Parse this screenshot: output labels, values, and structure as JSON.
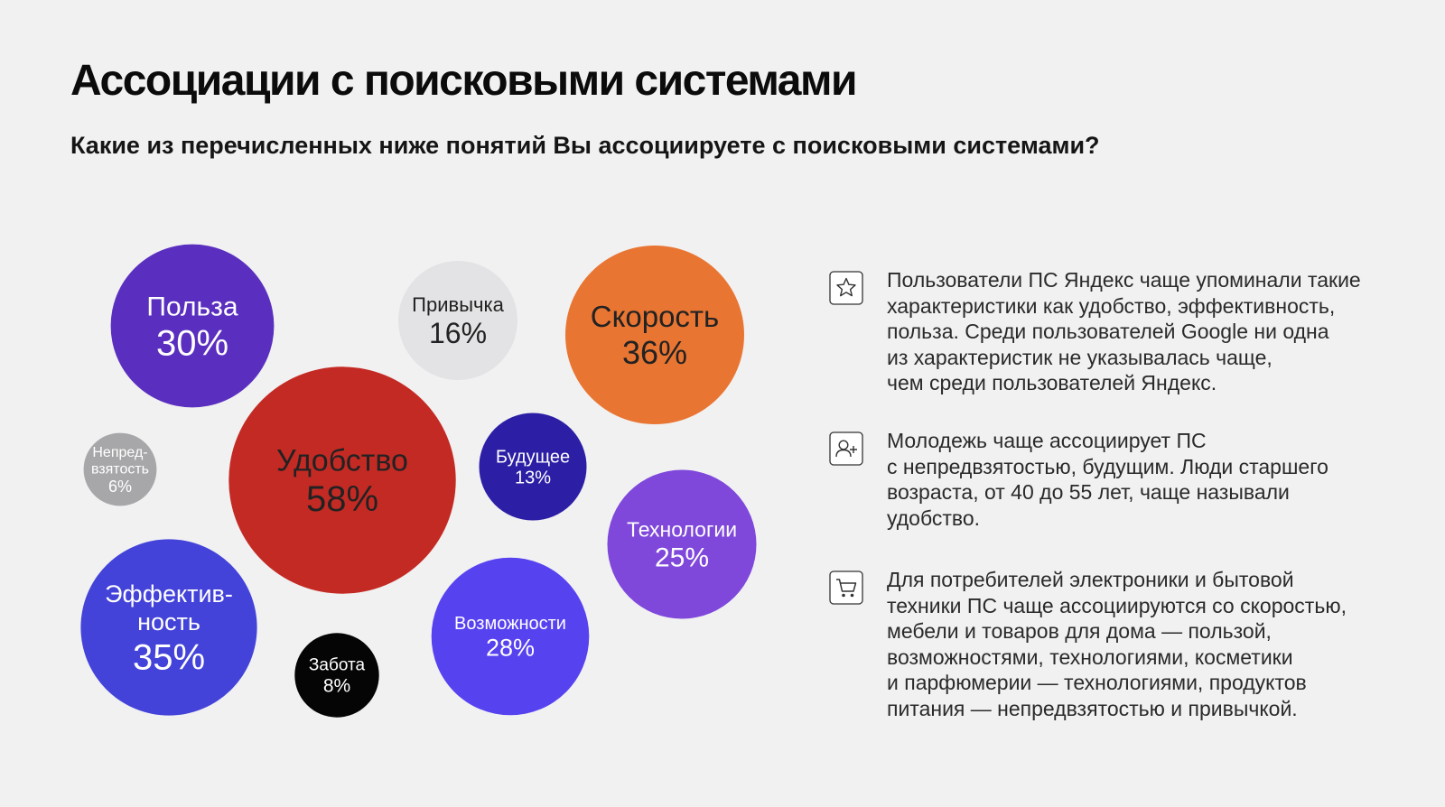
{
  "header": {
    "title": "Ассоциации с поисковыми системами",
    "subtitle": "Какие из перечисленных ниже понятий Вы ассоциируете с поисковыми системами?"
  },
  "chart_data": {
    "type": "bubble",
    "unit": "%",
    "categories": [
      "Польза",
      "Привычка",
      "Скорость",
      "Непред-взятость",
      "Удобство",
      "Будущее",
      "Технологии",
      "Эффектив-ность",
      "Забота",
      "Возможности"
    ],
    "values": [
      30,
      16,
      36,
      6,
      58,
      13,
      25,
      35,
      8,
      28
    ],
    "labels": [
      [
        "Польза"
      ],
      [
        "Привычка"
      ],
      [
        "Скорость"
      ],
      [
        "Непред-",
        "взятость"
      ],
      [
        "Удобство"
      ],
      [
        "Будущее"
      ],
      [
        "Технологии"
      ],
      [
        "Эффектив-",
        "ность"
      ],
      [
        "Забота"
      ],
      [
        "Возможности"
      ]
    ],
    "value_labels": [
      "30%",
      "16%",
      "36%",
      "6%",
      "58%",
      "13%",
      "25%",
      "35%",
      "8%",
      "28%"
    ],
    "colors": [
      "#5a2fbf",
      "#e3e3e5",
      "#e97532",
      "#a7a7aa",
      "#c42a24",
      "#2c1fa6",
      "#7f48db",
      "#4343d9",
      "#050505",
      "#5742f0"
    ],
    "text_colors": [
      "#ffffff",
      "#222222",
      "#222222",
      "#ffffff",
      "#222222",
      "#ffffff",
      "#ffffff",
      "#ffffff",
      "#ffffff",
      "#ffffff"
    ]
  },
  "notes": [
    {
      "icon": "star-icon",
      "text": "Пользователи ПС Яндекс чаще упоминали такие\nхарактеристики как удобство, эффективность,\nпольза. Среди пользователей Google ни одна\nиз характеристик не указывалась чаще,\nчем среди пользователей Яндекс."
    },
    {
      "icon": "add-user-icon",
      "text": "Молодежь чаще ассоциирует ПС\nс непредвзятостью, будущим. Люди старшего\nвозраста, от 40 до 55 лет, чаще называли\nудобство."
    },
    {
      "icon": "shopping-cart-icon",
      "text": "Для потребителей электроники и бытовой\nтехники ПС чаще ассоциируются со скоростью,\nмебели и товаров для дома — пользой,\nвозможностями, технологиями, косметики\nи парфюмерии — технологиями, продуктов\nпитания — непредвзятостью и привычкой."
    }
  ]
}
